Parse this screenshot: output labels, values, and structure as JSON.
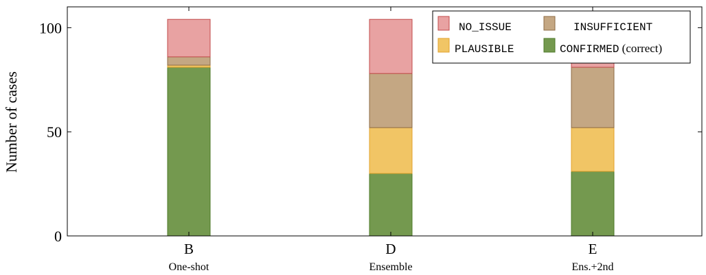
{
  "chart_data": {
    "type": "bar",
    "stacked": true,
    "categories": [
      "B",
      "D",
      "E"
    ],
    "category_sublabels": [
      "One-shot",
      "Ensemble",
      "Ens.+2nd"
    ],
    "ylabel": "Number of cases",
    "ylim": [
      0,
      110
    ],
    "yticks": [
      0,
      50,
      100
    ],
    "grid": false,
    "legend_position": "top-right",
    "series": [
      {
        "name": "CONFIRMED",
        "name_suffix": "(correct)",
        "color": "#74994F",
        "edge": "#4E7A2A",
        "values": [
          81,
          30,
          31
        ]
      },
      {
        "name": "PLAUSIBLE",
        "color": "#F1C565",
        "edge": "#E2A22C",
        "values": [
          1,
          22,
          21
        ]
      },
      {
        "name": "INSUFFICIENT",
        "color": "#C4A783",
        "edge": "#8E6B45",
        "values": [
          4,
          26,
          29
        ]
      },
      {
        "name": "NO_ISSUE",
        "color": "#E8A2A2",
        "edge": "#C24B4B",
        "values": [
          18,
          26,
          3
        ]
      }
    ],
    "legend_order": [
      "NO_ISSUE",
      "INSUFFICIENT",
      "PLAUSIBLE",
      "CONFIRMED"
    ]
  }
}
